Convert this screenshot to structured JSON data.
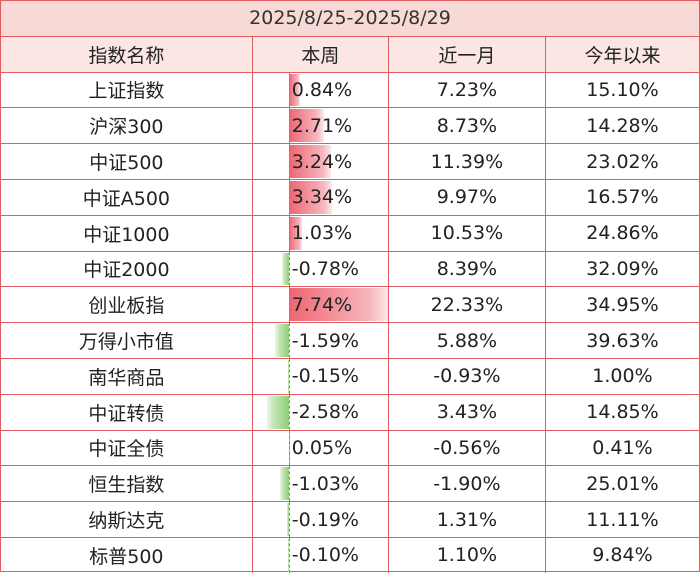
{
  "table": {
    "title": "2025/8/25-2025/8/29",
    "headers": [
      "指数名称",
      "本周",
      "近一月",
      "今年以来"
    ],
    "rows": [
      {
        "name": "上证指数",
        "week": "0.84%",
        "month": "7.23%",
        "ytd": "15.10%"
      },
      {
        "name": "沪深300",
        "week": "2.71%",
        "month": "8.73%",
        "ytd": "14.28%"
      },
      {
        "name": "中证500",
        "week": "3.24%",
        "month": "11.39%",
        "ytd": "23.02%"
      },
      {
        "name": "中证A500",
        "week": "3.34%",
        "month": "9.97%",
        "ytd": "16.57%"
      },
      {
        "name": "中证1000",
        "week": "1.03%",
        "month": "10.53%",
        "ytd": "24.86%"
      },
      {
        "name": "中证2000",
        "week": "-0.78%",
        "month": "8.39%",
        "ytd": "32.09%"
      },
      {
        "name": "创业板指",
        "week": "7.74%",
        "month": "22.33%",
        "ytd": "34.95%"
      },
      {
        "name": "万得小市值",
        "week": "-1.59%",
        "month": "5.88%",
        "ytd": "39.63%"
      },
      {
        "name": "南华商品",
        "week": "-0.15%",
        "month": "-0.93%",
        "ytd": "1.00%"
      },
      {
        "name": "中证转债",
        "week": "-2.58%",
        "month": "3.43%",
        "ytd": "14.85%"
      },
      {
        "name": "中证全债",
        "week": "0.05%",
        "month": "-0.56%",
        "ytd": "0.41%"
      },
      {
        "name": "恒生指数",
        "week": "-1.03%",
        "month": "-1.90%",
        "ytd": "25.01%"
      },
      {
        "name": "纳斯达克",
        "week": "-0.19%",
        "month": "1.31%",
        "ytd": "11.11%"
      },
      {
        "name": "标普500",
        "week": "-0.10%",
        "month": "1.10%",
        "ytd": "9.84%"
      }
    ]
  },
  "chart_data": {
    "type": "table",
    "title": "2025/8/25-2025/8/29",
    "columns": [
      "指数名称",
      "本周",
      "近一月",
      "今年以来"
    ],
    "categories": [
      "上证指数",
      "沪深300",
      "中证500",
      "中证A500",
      "中证1000",
      "中证2000",
      "创业板指",
      "万得小市值",
      "南华商品",
      "中证转债",
      "中证全债",
      "恒生指数",
      "纳斯达克",
      "标普500"
    ],
    "series": [
      {
        "name": "本周",
        "values": [
          0.84,
          2.71,
          3.24,
          3.34,
          1.03,
          -0.78,
          7.74,
          -1.59,
          -0.15,
          -2.58,
          0.05,
          -1.03,
          -0.19,
          -0.1
        ]
      },
      {
        "name": "近一月",
        "values": [
          7.23,
          8.73,
          11.39,
          9.97,
          10.53,
          8.39,
          22.33,
          5.88,
          -0.93,
          3.43,
          -0.56,
          -1.9,
          1.31,
          1.1
        ]
      },
      {
        "name": "今年以来",
        "values": [
          15.1,
          14.28,
          23.02,
          16.57,
          24.86,
          32.09,
          34.95,
          39.63,
          1.0,
          14.85,
          0.41,
          25.01,
          11.11,
          9.84
        ]
      }
    ]
  },
  "colors": {
    "border": "#e25b63",
    "title_bg": "#f7d9d6",
    "header_bg": "#fbe6e3",
    "positive_bar": "#ee6572",
    "negative_bar": "#8fcf78"
  }
}
